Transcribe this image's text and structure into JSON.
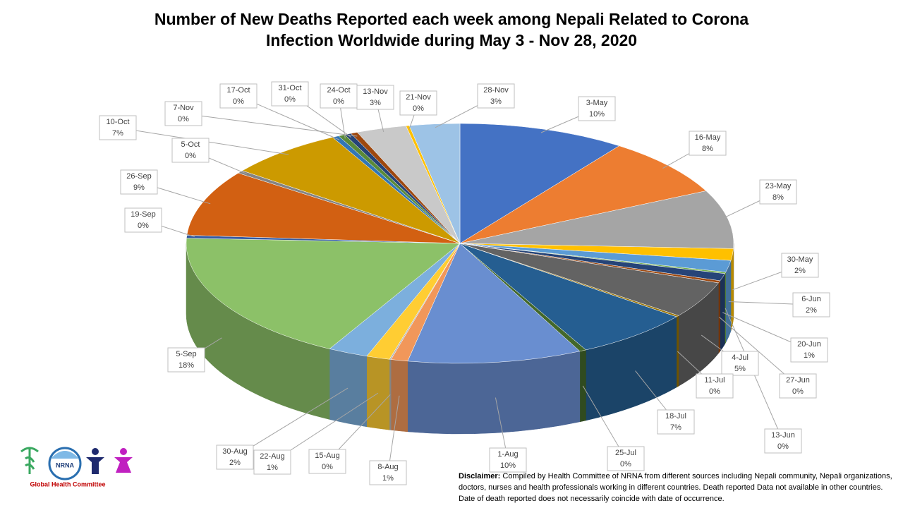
{
  "chart_data": {
    "type": "pie",
    "title": "Number of New Deaths Reported each week among Nepali Related to Corona Infection Worldwide during May 3 - Nov 28, 2020",
    "categories": [
      "3-May",
      "16-May",
      "23-May",
      "30-May",
      "6-Jun",
      "13-Jun",
      "20-Jun",
      "27-Jun",
      "4-Jul",
      "11-Jul",
      "18-Jul",
      "25-Jul",
      "1-Aug",
      "8-Aug",
      "15-Aug",
      "22-Aug",
      "30-Aug",
      "5-Sep",
      "19-Sep",
      "26-Sep",
      "5-Oct",
      "10-Oct",
      "17-Oct",
      "24-Oct",
      "31-Oct",
      "7-Nov",
      "13-Nov",
      "21-Nov",
      "28-Nov"
    ],
    "values": [
      10,
      8,
      8,
      1.6,
      1.6,
      0.2,
      1.0,
      0.3,
      5,
      0.2,
      7,
      0.4,
      10.4,
      1,
      0.1,
      1.4,
      2.4,
      18,
      0.4,
      9,
      0.4,
      7,
      0.4,
      0.4,
      0.4,
      0.4,
      3,
      0.2,
      3
    ],
    "value_labels": [
      "10%",
      "8%",
      "8%",
      "2%",
      "2%",
      "0%",
      "1%",
      "0%",
      "5%",
      "0%",
      "7%",
      "0%",
      "10%",
      "1%",
      "0%",
      "1%",
      "2%",
      "18%",
      "0%",
      "9%",
      "0%",
      "7%",
      "0%",
      "0%",
      "0%",
      "0%",
      "3%",
      "0%",
      "3%"
    ],
    "colors": [
      "#4472c4",
      "#ed7d31",
      "#a5a5a5",
      "#ffc000",
      "#5b9bd5",
      "#70ad47",
      "#264478",
      "#9e480e",
      "#636363",
      "#997300",
      "#255e91",
      "#43682b",
      "#698ed0",
      "#f1975a",
      "#b7b7b7",
      "#ffcd33",
      "#7cafdd",
      "#8cc168",
      "#335aa1",
      "#d26012",
      "#848484",
      "#cc9a00",
      "#3276b5",
      "#5a8a39",
      "#264478",
      "#9e480e",
      "#c9c9c9",
      "#ffc000",
      "#9dc3e6"
    ]
  },
  "logo": {
    "mark": "NRNA",
    "caption": "Global Health Committee"
  },
  "disclaimer": {
    "label": "Disclaimer:",
    "text": "Compiled by Health Committee of NRNA from different sources including Nepali community, Nepali organizations, doctors, nurses and health professionals working in different countries. Death reported Data not available in other countries. Date of death reported does not necessarily coincide with date of occurrence."
  }
}
